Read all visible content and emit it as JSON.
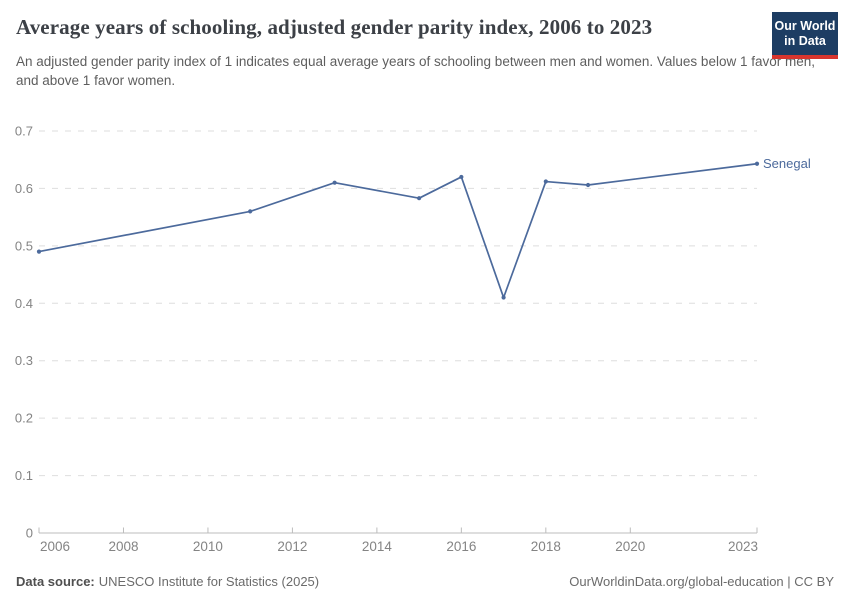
{
  "header": {
    "title": "Average years of schooling, adjusted gender parity index, 2006 to 2023",
    "subtitle": "An adjusted gender parity index of 1 indicates equal average years of schooling between men and women. Values below 1 favor men, and above 1 favor women.",
    "logo": {
      "line1": "Our World",
      "line2": "in Data",
      "bg_color": "#1d3d63",
      "bar_color": "#d8352e"
    }
  },
  "chart_data": {
    "type": "line",
    "title": "Average years of schooling, adjusted gender parity index, 2006 to 2023",
    "x": [
      2006,
      2011,
      2013,
      2015,
      2016,
      2017,
      2018,
      2019,
      2023
    ],
    "series": [
      {
        "name": "Senegal",
        "color": "#4c6a9c",
        "values": [
          0.49,
          0.56,
          0.61,
          0.583,
          0.62,
          0.41,
          0.612,
          0.606,
          0.643
        ]
      }
    ],
    "end_label": "Senegal",
    "x_tick_years": [
      2006,
      2008,
      2010,
      2012,
      2014,
      2016,
      2018,
      2020,
      2023
    ],
    "x_tick_labels": [
      "2006",
      "2008",
      "2010",
      "2012",
      "2014",
      "2016",
      "2018",
      "2020",
      "2023"
    ],
    "y_tick_values": [
      0,
      0.1,
      0.2,
      0.3,
      0.4,
      0.5,
      0.6,
      0.7
    ],
    "y_tick_labels": [
      "0",
      "0.1",
      "0.2",
      "0.3",
      "0.4",
      "0.5",
      "0.6",
      "0.7"
    ],
    "xlim": [
      2006,
      2023
    ],
    "ylim": [
      0,
      0.7
    ],
    "grid": "horizontal dashed",
    "legend": "line-end label"
  },
  "footer": {
    "source_label": "Data source:",
    "source_text": "UNESCO Institute for Statistics (2025)",
    "right_text": "OurWorldinData.org/global-education | CC BY"
  },
  "colors": {
    "line": "#4c6a9c",
    "grid": "#dedede",
    "axis": "#bcbcbc",
    "tick_label": "#848484",
    "title": "#3c4046",
    "subtitle": "#5e5e5e"
  }
}
